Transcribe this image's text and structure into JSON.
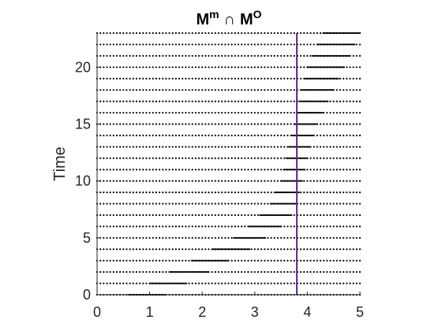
{
  "chart_data": {
    "type": "scatter",
    "title": {
      "m1": "M",
      "s1": "m",
      "op": "∩",
      "m2": "M",
      "s2": "O"
    },
    "xlabel": "",
    "ylabel": "Time",
    "xlim": [
      0,
      5
    ],
    "ylim": [
      0,
      23
    ],
    "xticks": [
      "0",
      "1",
      "2",
      "3",
      "4",
      "5"
    ],
    "yticks": [
      "0",
      "5",
      "10",
      "15",
      "20"
    ],
    "grid": false,
    "vertical_line": {
      "x": 3.8,
      "color": "#5b2a86"
    },
    "marker_color": "#000000",
    "series": [
      {
        "description": "uniform sample points on each time level",
        "x_spacing": 0.0625,
        "x_range": [
          0,
          5
        ],
        "times": [
          0,
          1,
          2,
          3,
          4,
          5,
          6,
          7,
          8,
          9,
          10,
          11,
          12,
          13,
          14,
          15,
          16,
          17,
          18,
          19,
          20,
          21,
          22,
          23
        ]
      },
      {
        "description": "refined points clustering toward the vertical line, moving right over time",
        "refined_ranges": [
          [
            0.6,
            1.3
          ],
          [
            1.0,
            1.7
          ],
          [
            1.4,
            2.1
          ],
          [
            1.8,
            2.5
          ],
          [
            2.2,
            2.9
          ],
          [
            2.6,
            3.2
          ],
          [
            2.9,
            3.5
          ],
          [
            3.1,
            3.7
          ],
          [
            3.3,
            3.8
          ],
          [
            3.4,
            3.85
          ],
          [
            3.5,
            3.9
          ],
          [
            3.55,
            3.95
          ],
          [
            3.6,
            4.0
          ],
          [
            3.65,
            4.05
          ],
          [
            3.7,
            4.1
          ],
          [
            3.75,
            4.2
          ],
          [
            3.8,
            4.3
          ],
          [
            3.85,
            4.4
          ],
          [
            3.9,
            4.5
          ],
          [
            3.95,
            4.6
          ],
          [
            4.0,
            4.7
          ],
          [
            4.1,
            4.8
          ],
          [
            4.2,
            4.9
          ],
          [
            4.3,
            5.0
          ]
        ],
        "refined_spacing": 0.02
      }
    ]
  }
}
